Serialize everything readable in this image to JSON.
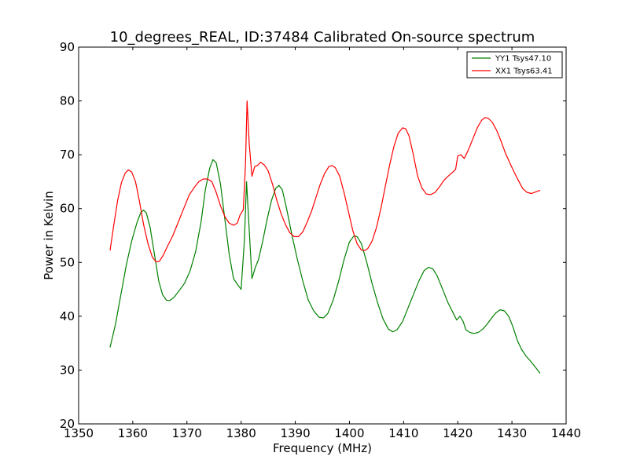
{
  "chart_data": {
    "type": "line",
    "title": "10_degrees_REAL, ID:37484 Calibrated On-source spectrum",
    "xlabel": "Frequency (MHz)",
    "ylabel": "Power in Kelvin",
    "xlim": [
      1350,
      1440
    ],
    "ylim": [
      20,
      90
    ],
    "xticks": [
      1350,
      1360,
      1370,
      1380,
      1390,
      1400,
      1410,
      1420,
      1430,
      1440
    ],
    "yticks": [
      20,
      30,
      40,
      50,
      60,
      70,
      80,
      90
    ],
    "xtick_labels": [
      "1350",
      "1360",
      "1370",
      "1380",
      "1390",
      "1400",
      "1410",
      "1420",
      "1430",
      "1440"
    ],
    "ytick_labels": [
      "20",
      "30",
      "40",
      "50",
      "60",
      "70",
      "80",
      "90"
    ],
    "grid": false,
    "legend_position": "top-right",
    "series": [
      {
        "name": "YY1 Tsys47.10",
        "color": "#008000",
        "points": [
          [
            1355.8,
            34.2
          ],
          [
            1356.8,
            38.5
          ],
          [
            1357.8,
            44.0
          ],
          [
            1358.8,
            49.5
          ],
          [
            1359.8,
            54.0
          ],
          [
            1360.8,
            57.5
          ],
          [
            1361.5,
            59.3
          ],
          [
            1362.0,
            59.7
          ],
          [
            1362.5,
            59.2
          ],
          [
            1363.2,
            56.5
          ],
          [
            1364.0,
            51.5
          ],
          [
            1364.8,
            46.5
          ],
          [
            1365.5,
            44.0
          ],
          [
            1366.2,
            43.0
          ],
          [
            1366.8,
            42.9
          ],
          [
            1367.6,
            43.5
          ],
          [
            1368.6,
            44.8
          ],
          [
            1369.6,
            46.2
          ],
          [
            1370.6,
            48.5
          ],
          [
            1371.6,
            52.0
          ],
          [
            1372.6,
            57.5
          ],
          [
            1373.4,
            63.5
          ],
          [
            1374.2,
            67.5
          ],
          [
            1374.8,
            69.1
          ],
          [
            1375.4,
            68.5
          ],
          [
            1376.2,
            64.5
          ],
          [
            1377.0,
            58.0
          ],
          [
            1377.8,
            51.5
          ],
          [
            1378.6,
            47.0
          ],
          [
            1379.4,
            45.8
          ],
          [
            1380.0,
            45.0
          ],
          [
            1380.6,
            54.0
          ],
          [
            1381.0,
            65.0
          ],
          [
            1381.5,
            56.0
          ],
          [
            1382.0,
            47.0
          ],
          [
            1382.6,
            49.0
          ],
          [
            1383.2,
            50.5
          ],
          [
            1384.0,
            54.0
          ],
          [
            1384.8,
            58.0
          ],
          [
            1385.6,
            61.5
          ],
          [
            1386.4,
            63.8
          ],
          [
            1387.0,
            64.3
          ],
          [
            1387.6,
            63.5
          ],
          [
            1388.4,
            60.0
          ],
          [
            1389.4,
            55.0
          ],
          [
            1390.4,
            50.5
          ],
          [
            1391.4,
            46.5
          ],
          [
            1392.4,
            43.0
          ],
          [
            1393.4,
            41.0
          ],
          [
            1394.4,
            39.8
          ],
          [
            1395.2,
            39.7
          ],
          [
            1396.0,
            40.5
          ],
          [
            1397.0,
            43.0
          ],
          [
            1398.0,
            46.5
          ],
          [
            1399.0,
            50.5
          ],
          [
            1400.0,
            53.8
          ],
          [
            1400.8,
            54.9
          ],
          [
            1401.4,
            54.8
          ],
          [
            1402.2,
            53.5
          ],
          [
            1403.2,
            50.0
          ],
          [
            1404.2,
            46.0
          ],
          [
            1405.2,
            42.5
          ],
          [
            1406.2,
            39.5
          ],
          [
            1407.2,
            37.6
          ],
          [
            1408.0,
            37.1
          ],
          [
            1408.8,
            37.5
          ],
          [
            1409.8,
            39.0
          ],
          [
            1410.8,
            41.5
          ],
          [
            1411.8,
            44.0
          ],
          [
            1412.8,
            46.5
          ],
          [
            1413.8,
            48.5
          ],
          [
            1414.6,
            49.1
          ],
          [
            1415.4,
            48.8
          ],
          [
            1416.2,
            47.5
          ],
          [
            1417.2,
            45.0
          ],
          [
            1418.2,
            42.5
          ],
          [
            1419.2,
            40.5
          ],
          [
            1419.8,
            39.3
          ],
          [
            1420.4,
            40.0
          ],
          [
            1421.0,
            39.0
          ],
          [
            1421.5,
            37.5
          ],
          [
            1422.2,
            37.0
          ],
          [
            1423.0,
            36.8
          ],
          [
            1423.8,
            37.0
          ],
          [
            1424.6,
            37.6
          ],
          [
            1425.4,
            38.5
          ],
          [
            1426.2,
            39.6
          ],
          [
            1427.0,
            40.6
          ],
          [
            1427.8,
            41.2
          ],
          [
            1428.6,
            41.0
          ],
          [
            1429.4,
            40.0
          ],
          [
            1430.2,
            38.0
          ],
          [
            1431.0,
            35.5
          ],
          [
            1431.8,
            33.8
          ],
          [
            1432.6,
            32.6
          ],
          [
            1433.4,
            31.7
          ],
          [
            1434.2,
            30.7
          ],
          [
            1435.2,
            29.4
          ]
        ]
      },
      {
        "name": "XX1 Tsys63.41",
        "color": "#ff0000",
        "points": [
          [
            1355.8,
            52.2
          ],
          [
            1356.5,
            57.0
          ],
          [
            1357.2,
            61.5
          ],
          [
            1357.9,
            64.8
          ],
          [
            1358.6,
            66.6
          ],
          [
            1359.2,
            67.2
          ],
          [
            1359.8,
            66.8
          ],
          [
            1360.5,
            65.0
          ],
          [
            1361.2,
            61.5
          ],
          [
            1362.0,
            57.0
          ],
          [
            1362.8,
            53.5
          ],
          [
            1363.6,
            51.0
          ],
          [
            1364.3,
            50.1
          ],
          [
            1364.9,
            50.2
          ],
          [
            1365.6,
            51.3
          ],
          [
            1366.4,
            53.0
          ],
          [
            1367.4,
            55.0
          ],
          [
            1368.4,
            57.5
          ],
          [
            1369.4,
            60.0
          ],
          [
            1370.4,
            62.5
          ],
          [
            1371.4,
            64.0
          ],
          [
            1372.2,
            65.0
          ],
          [
            1373.0,
            65.5
          ],
          [
            1373.8,
            65.5
          ],
          [
            1374.6,
            65.0
          ],
          [
            1375.4,
            63.0
          ],
          [
            1376.2,
            60.5
          ],
          [
            1377.0,
            58.5
          ],
          [
            1377.8,
            57.3
          ],
          [
            1378.6,
            56.9
          ],
          [
            1379.3,
            57.3
          ],
          [
            1379.8,
            58.8
          ],
          [
            1380.4,
            59.8
          ],
          [
            1380.8,
            68.0
          ],
          [
            1381.1,
            80.0
          ],
          [
            1381.5,
            72.0
          ],
          [
            1382.0,
            66.0
          ],
          [
            1382.5,
            67.8
          ],
          [
            1383.0,
            68.0
          ],
          [
            1383.6,
            68.6
          ],
          [
            1384.3,
            68.1
          ],
          [
            1385.0,
            67.0
          ],
          [
            1385.8,
            64.5
          ],
          [
            1386.6,
            61.5
          ],
          [
            1387.4,
            59.0
          ],
          [
            1388.2,
            57.0
          ],
          [
            1389.0,
            55.5
          ],
          [
            1389.8,
            54.8
          ],
          [
            1390.6,
            54.8
          ],
          [
            1391.4,
            55.7
          ],
          [
            1392.2,
            57.5
          ],
          [
            1393.0,
            59.5
          ],
          [
            1393.8,
            62.0
          ],
          [
            1394.6,
            64.5
          ],
          [
            1395.4,
            66.5
          ],
          [
            1396.2,
            67.8
          ],
          [
            1396.8,
            68.0
          ],
          [
            1397.4,
            67.6
          ],
          [
            1398.2,
            66.0
          ],
          [
            1399.0,
            63.0
          ],
          [
            1399.8,
            59.5
          ],
          [
            1400.6,
            56.0
          ],
          [
            1401.4,
            53.5
          ],
          [
            1402.2,
            52.3
          ],
          [
            1402.8,
            52.2
          ],
          [
            1403.4,
            52.6
          ],
          [
            1404.2,
            54.0
          ],
          [
            1405.0,
            56.5
          ],
          [
            1405.8,
            60.0
          ],
          [
            1406.6,
            64.0
          ],
          [
            1407.4,
            68.0
          ],
          [
            1408.2,
            71.5
          ],
          [
            1409.0,
            74.0
          ],
          [
            1409.8,
            75.0
          ],
          [
            1410.4,
            74.8
          ],
          [
            1411.0,
            73.5
          ],
          [
            1411.8,
            70.0
          ],
          [
            1412.6,
            66.0
          ],
          [
            1413.4,
            63.8
          ],
          [
            1414.2,
            62.7
          ],
          [
            1415.0,
            62.6
          ],
          [
            1415.8,
            63.0
          ],
          [
            1416.6,
            64.0
          ],
          [
            1417.4,
            65.2
          ],
          [
            1418.2,
            66.0
          ],
          [
            1419.0,
            66.7
          ],
          [
            1419.6,
            67.3
          ],
          [
            1420.0,
            69.8
          ],
          [
            1420.6,
            70.0
          ],
          [
            1421.2,
            69.3
          ],
          [
            1422.0,
            71.0
          ],
          [
            1422.8,
            73.0
          ],
          [
            1423.6,
            75.0
          ],
          [
            1424.4,
            76.4
          ],
          [
            1425.0,
            76.9
          ],
          [
            1425.6,
            76.8
          ],
          [
            1426.4,
            76.0
          ],
          [
            1427.2,
            74.5
          ],
          [
            1428.0,
            72.5
          ],
          [
            1428.8,
            70.3
          ],
          [
            1429.6,
            68.5
          ],
          [
            1430.4,
            66.8
          ],
          [
            1431.2,
            65.2
          ],
          [
            1432.0,
            63.7
          ],
          [
            1432.8,
            63.0
          ],
          [
            1433.6,
            62.8
          ],
          [
            1434.4,
            63.1
          ],
          [
            1435.2,
            63.4
          ]
        ]
      }
    ]
  }
}
